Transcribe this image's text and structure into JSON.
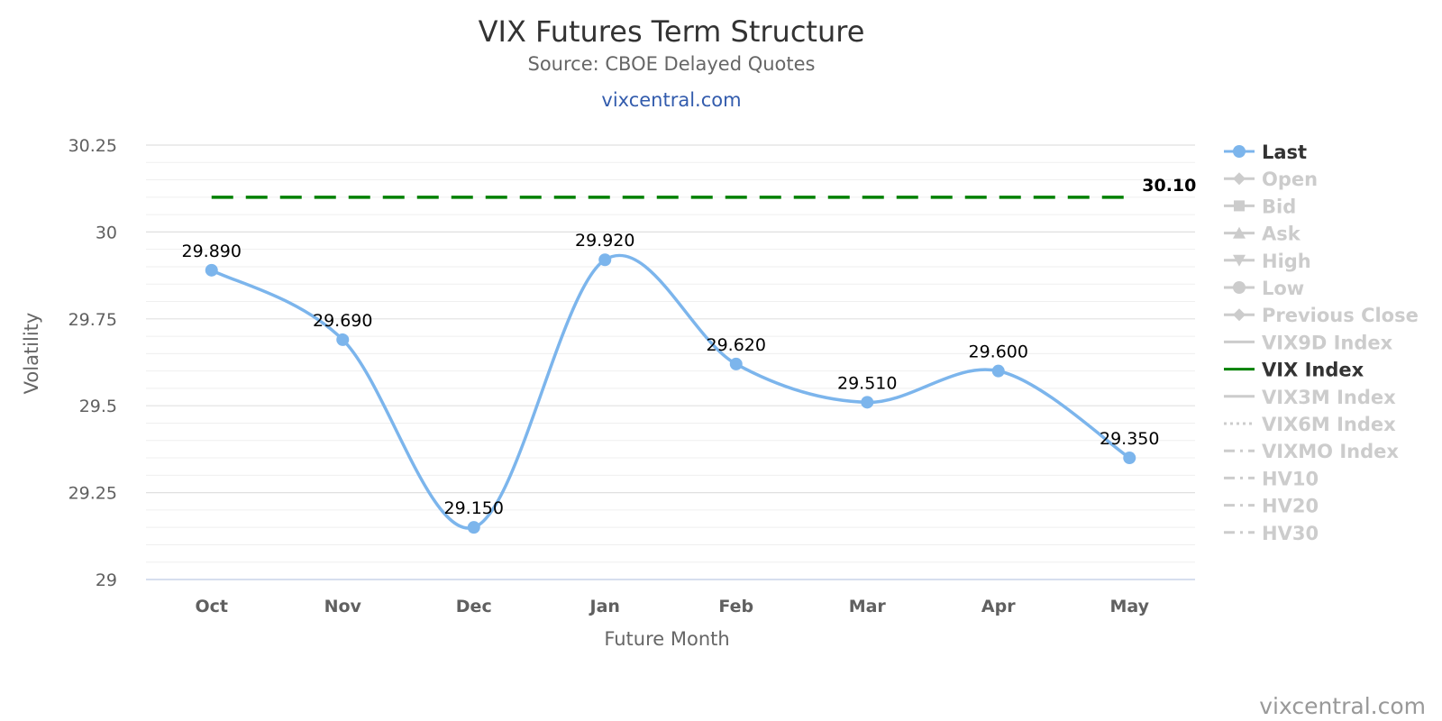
{
  "header": {
    "title": "VIX Futures Term Structure",
    "subtitle": "Source: CBOE Delayed Quotes",
    "link": "vixcentral.com"
  },
  "credit": "vixcentral.com",
  "colors": {
    "last": "#7cb5ec",
    "vix_index": "#008000",
    "legend_active": "#333333",
    "legend_inactive": "#cccccc"
  },
  "chart_data": {
    "type": "line",
    "title": "VIX Futures Term Structure",
    "subtitle": "Source: CBOE Delayed Quotes",
    "xlabel": "Future Month",
    "ylabel": "Volatility",
    "categories": [
      "Oct",
      "Nov",
      "Dec",
      "Jan",
      "Feb",
      "Mar",
      "Apr",
      "May"
    ],
    "ylim": [
      29,
      30.25
    ],
    "yticks": [
      29,
      29.25,
      29.5,
      29.75,
      30,
      30.25
    ],
    "ytick_labels": [
      "29",
      "29.25",
      "29.5",
      "29.75",
      "30",
      "30.25"
    ],
    "grid": true,
    "legend_position": "right",
    "series": [
      {
        "name": "Last",
        "style": "spline-markers",
        "values": [
          29.89,
          29.69,
          29.15,
          29.92,
          29.62,
          29.51,
          29.6,
          29.35
        ],
        "labels": [
          "29.890",
          "29.690",
          "29.150",
          "29.920",
          "29.620",
          "29.510",
          "29.600",
          "29.350"
        ]
      },
      {
        "name": "VIX Index",
        "style": "dashed",
        "values": [
          30.1,
          30.1,
          30.1,
          30.1,
          30.1,
          30.1,
          30.1,
          30.1
        ],
        "end_label": "30.10"
      }
    ],
    "legend": [
      {
        "name": "Last",
        "symbol": "circle",
        "active": true
      },
      {
        "name": "Open",
        "symbol": "diamond",
        "active": false
      },
      {
        "name": "Bid",
        "symbol": "square",
        "active": false
      },
      {
        "name": "Ask",
        "symbol": "triangle",
        "active": false
      },
      {
        "name": "High",
        "symbol": "triangle-down",
        "active": false
      },
      {
        "name": "Low",
        "symbol": "circle",
        "active": false
      },
      {
        "name": "Previous Close",
        "symbol": "diamond",
        "active": false
      },
      {
        "name": "VIX9D Index",
        "symbol": "solid",
        "active": false
      },
      {
        "name": "VIX Index",
        "symbol": "solid",
        "active": true
      },
      {
        "name": "VIX3M Index",
        "symbol": "solid",
        "active": false
      },
      {
        "name": "VIX6M Index",
        "symbol": "dotted",
        "active": false
      },
      {
        "name": "VIXMO Index",
        "symbol": "dashdot",
        "active": false
      },
      {
        "name": "HV10",
        "symbol": "dashdot",
        "active": false
      },
      {
        "name": "HV20",
        "symbol": "dashdot",
        "active": false
      },
      {
        "name": "HV30",
        "symbol": "dashdot",
        "active": false
      }
    ]
  }
}
